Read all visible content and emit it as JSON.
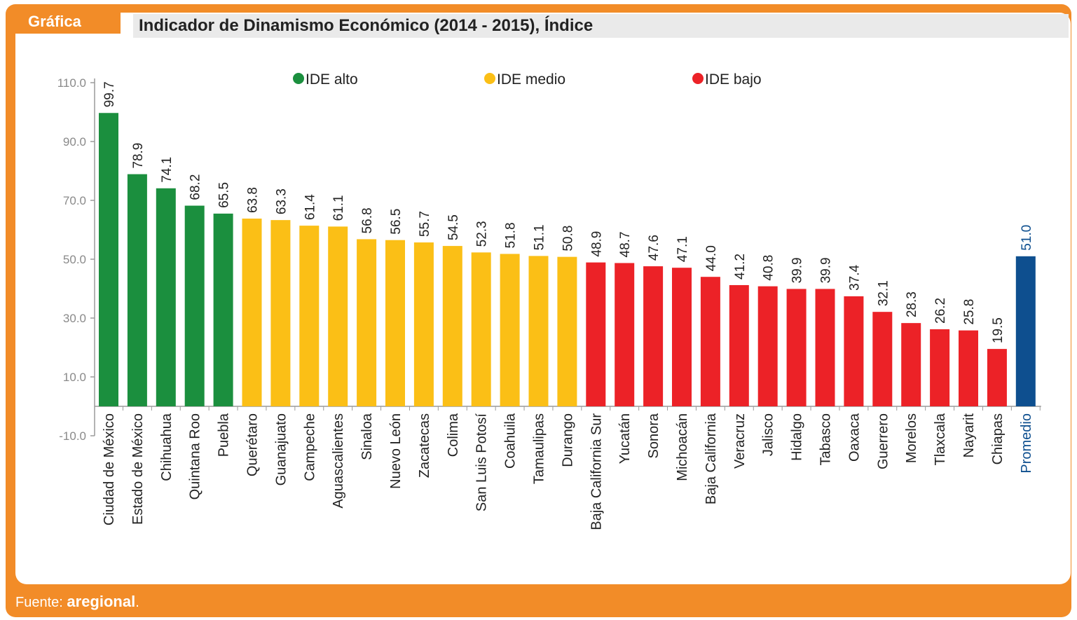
{
  "header": {
    "badge": "Gráfica",
    "title": "Indicador de Dinamismo Económico (2014 - 2015), Índice"
  },
  "footer": {
    "source_label": "Fuente:",
    "source_brand": "aregional",
    "source_end": "."
  },
  "colors": {
    "alto": "#1b8f3e",
    "medio": "#fbbf16",
    "bajo": "#ec2227",
    "promedio": "#0e4f8f",
    "frame": "#f28c28"
  },
  "chart_data": {
    "type": "bar",
    "title": "Indicador de Dinamismo Económico (2014 - 2015), Índice",
    "xlabel": "",
    "ylabel": "",
    "ylim": [
      -10,
      110
    ],
    "yticks": [
      "110.0",
      "90.0",
      "70.0",
      "50.0",
      "30.0",
      "10.0",
      "-10.0"
    ],
    "ytick_values": [
      110,
      90,
      70,
      50,
      30,
      10,
      -10
    ],
    "grid": false,
    "legend": [
      {
        "key": "alto",
        "label": "IDE alto"
      },
      {
        "key": "medio",
        "label": "IDE medio"
      },
      {
        "key": "bajo",
        "label": "IDE bajo"
      }
    ],
    "legend_position": "top",
    "categories": [
      "Ciudad de México",
      "Estado de México",
      "Chihuahua",
      "Quintana Roo",
      "Puebla",
      "Querétaro",
      "Guanajuato",
      "Campeche",
      "Aguascalientes",
      "Sinaloa",
      "Nuevo León",
      "Zacatecas",
      "Colima",
      "San Luis Potosí",
      "Coahuila",
      "Tamaulipas",
      "Durango",
      "Baja California Sur",
      "Yucatán",
      "Sonora",
      "Michoacán",
      "Baja California",
      "Veracruz",
      "Jalisco",
      "Hidalgo",
      "Tabasco",
      "Oaxaca",
      "Guerrero",
      "Morelos",
      "Tlaxcala",
      "Nayarit",
      "Chiapas",
      "Promedio"
    ],
    "values": [
      99.7,
      78.9,
      74.1,
      68.2,
      65.5,
      63.8,
      63.3,
      61.4,
      61.1,
      56.8,
      56.5,
      55.7,
      54.5,
      52.3,
      51.8,
      51.1,
      50.8,
      48.9,
      48.7,
      47.6,
      47.1,
      44.0,
      41.2,
      40.8,
      39.9,
      39.9,
      37.4,
      32.1,
      28.3,
      26.2,
      25.8,
      19.5,
      51.0
    ],
    "value_labels": [
      "99.7",
      "78.9",
      "74.1",
      "68.2",
      "65.5",
      "63.8",
      "63.3",
      "61.4",
      "61.1",
      "56.8",
      "56.5",
      "55.7",
      "54.5",
      "52.3",
      "51.8",
      "51.1",
      "50.8",
      "48.9",
      "48.7",
      "47.6",
      "47.1",
      "44.0",
      "41.2",
      "40.8",
      "39.9",
      "39.9",
      "37.4",
      "32.1",
      "28.3",
      "26.2",
      "25.8",
      "19.5",
      "51.0"
    ],
    "groups": [
      "alto",
      "alto",
      "alto",
      "alto",
      "alto",
      "medio",
      "medio",
      "medio",
      "medio",
      "medio",
      "medio",
      "medio",
      "medio",
      "medio",
      "medio",
      "medio",
      "medio",
      "bajo",
      "bajo",
      "bajo",
      "bajo",
      "bajo",
      "bajo",
      "bajo",
      "bajo",
      "bajo",
      "bajo",
      "bajo",
      "bajo",
      "bajo",
      "bajo",
      "bajo",
      "promedio"
    ]
  }
}
